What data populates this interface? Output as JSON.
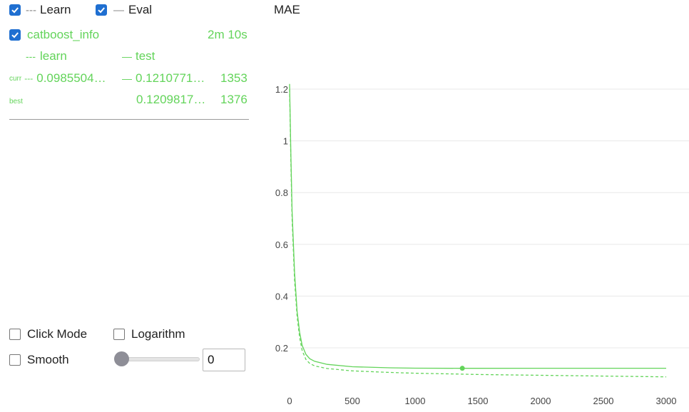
{
  "legend": {
    "learn_label": "Learn",
    "learn_checked": true,
    "eval_label": "Eval",
    "eval_checked": true
  },
  "run": {
    "name": "catboost_info",
    "checked": true,
    "duration": "2m 10s",
    "learn_col": "learn",
    "test_col": "test",
    "curr_label": "curr",
    "curr_learn": "0.0985504…",
    "curr_test": "0.1210771…",
    "curr_iter": "1353",
    "best_label": "best",
    "best_test": "0.1209817…",
    "best_iter": "1376"
  },
  "controls": {
    "click_mode_label": "Click Mode",
    "click_mode_checked": false,
    "logarithm_label": "Logarithm",
    "logarithm_checked": false,
    "smooth_label": "Smooth",
    "smooth_checked": false,
    "smooth_value": "0",
    "smooth_slider_fraction": 0
  },
  "colors": {
    "series": "#63d45a",
    "checkbox": "#1f6fd1",
    "grid": "#e8e8e8"
  },
  "chart_data": {
    "type": "line",
    "title": "MAE",
    "xlabel": "",
    "ylabel": "",
    "xlim": [
      0,
      3000
    ],
    "ylim": [
      0.08,
      1.24
    ],
    "x_ticks": [
      0,
      500,
      1000,
      1500,
      2000,
      2500,
      3000
    ],
    "y_ticks": [
      0.2,
      0.4,
      0.6,
      0.8,
      1,
      1.2
    ],
    "y_tick_labels": [
      "0.2",
      "0.4",
      "0.6",
      "0.8",
      "1",
      "1.2"
    ],
    "grid": true,
    "series": [
      {
        "name": "learn",
        "style": "dashed",
        "x": [
          0,
          10,
          20,
          40,
          60,
          80,
          100,
          130,
          160,
          200,
          300,
          500,
          800,
          1000,
          1353,
          1500,
          2000,
          2500,
          3000
        ],
        "y": [
          1.2,
          0.92,
          0.7,
          0.46,
          0.32,
          0.24,
          0.19,
          0.155,
          0.14,
          0.13,
          0.12,
          0.111,
          0.105,
          0.102,
          0.0986,
          0.097,
          0.094,
          0.091,
          0.088
        ]
      },
      {
        "name": "test",
        "style": "solid",
        "x": [
          0,
          10,
          20,
          40,
          60,
          80,
          100,
          130,
          160,
          200,
          300,
          500,
          800,
          1000,
          1376,
          1500,
          2000,
          2500,
          3000
        ],
        "y": [
          1.22,
          0.95,
          0.73,
          0.49,
          0.34,
          0.26,
          0.21,
          0.175,
          0.158,
          0.148,
          0.136,
          0.127,
          0.123,
          0.1215,
          0.121,
          0.121,
          0.1211,
          0.1212,
          0.1213
        ]
      }
    ],
    "best_point": {
      "x": 1376,
      "y": 0.1209817
    }
  }
}
